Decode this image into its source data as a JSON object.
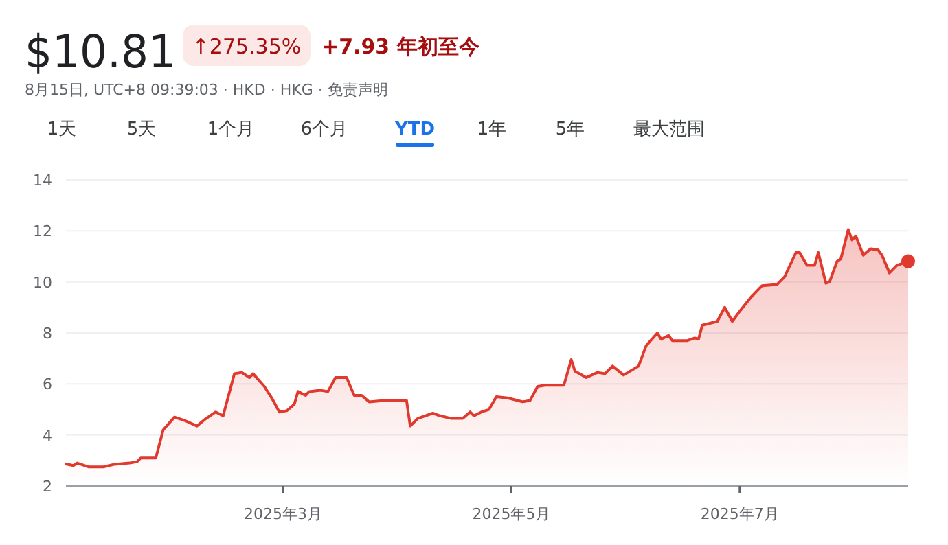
{
  "chart_data": {
    "type": "area",
    "title": "$10.81",
    "subtitle": "8月15日, UTC+8 09:39:03 · HKD · HKG · 免责声明",
    "annotations": [
      "↑275.35%",
      "+7.93 年初至今",
      "1天",
      "5天",
      "1个月",
      "6个月",
      "YTD",
      "1年",
      "5年",
      "最大范围"
    ],
    "xlim": [
      "2025-01-02",
      "2025-08-15"
    ],
    "xticks": [
      {
        "value": "2025-03-01",
        "label": "2025年3月"
      },
      {
        "value": "2025-05-01",
        "label": "2025年5月"
      },
      {
        "value": "2025-07-01",
        "label": "2025年7月"
      }
    ],
    "ylim": [
      2,
      14
    ],
    "yticks": [
      2,
      4,
      6,
      8,
      10,
      12,
      14
    ],
    "grid": "y",
    "series": [
      {
        "color": "#e0392e",
        "x": [
          "2025-01-02",
          "2025-01-04",
          "2025-01-05",
          "2025-01-08",
          "2025-01-12",
          "2025-01-15",
          "2025-01-19",
          "2025-01-21",
          "2025-01-22",
          "2025-01-26",
          "2025-01-28",
          "2025-01-31",
          "2025-02-03",
          "2025-02-06",
          "2025-02-08",
          "2025-02-11",
          "2025-02-13",
          "2025-02-16",
          "2025-02-18",
          "2025-02-20",
          "2025-02-21",
          "2025-02-24",
          "2025-02-26",
          "2025-02-28",
          "2025-03-02",
          "2025-03-04",
          "2025-03-05",
          "2025-03-07",
          "2025-03-08",
          "2025-03-11",
          "2025-03-13",
          "2025-03-15",
          "2025-03-18",
          "2025-03-20",
          "2025-03-22",
          "2025-03-24",
          "2025-03-28",
          "2025-04-01",
          "2025-04-03",
          "2025-04-04",
          "2025-04-06",
          "2025-04-10",
          "2025-04-12",
          "2025-04-15",
          "2025-04-18",
          "2025-04-20",
          "2025-04-21",
          "2025-04-23",
          "2025-04-25",
          "2025-04-27",
          "2025-04-30",
          "2025-05-04",
          "2025-05-06",
          "2025-05-08",
          "2025-05-10",
          "2025-05-15",
          "2025-05-17",
          "2025-05-18",
          "2025-05-21",
          "2025-05-24",
          "2025-05-26",
          "2025-05-28",
          "2025-05-31",
          "2025-06-04",
          "2025-06-06",
          "2025-06-09",
          "2025-06-10",
          "2025-06-12",
          "2025-06-13",
          "2025-06-17",
          "2025-06-19",
          "2025-06-20",
          "2025-06-21",
          "2025-06-25",
          "2025-06-27",
          "2025-06-29",
          "2025-07-01",
          "2025-07-04",
          "2025-07-07",
          "2025-07-11",
          "2025-07-13",
          "2025-07-16",
          "2025-07-17",
          "2025-07-19",
          "2025-07-21",
          "2025-07-22",
          "2025-07-24",
          "2025-07-25",
          "2025-07-27",
          "2025-07-28",
          "2025-07-30",
          "2025-07-31",
          "2025-08-01",
          "2025-08-03",
          "2025-08-05",
          "2025-08-07",
          "2025-08-08",
          "2025-08-10",
          "2025-08-12",
          "2025-08-15"
        ],
        "values": [
          2.86,
          2.8,
          2.9,
          2.75,
          2.75,
          2.85,
          2.9,
          2.95,
          3.1,
          3.1,
          4.2,
          4.7,
          4.55,
          4.35,
          4.6,
          4.9,
          4.75,
          6.4,
          6.45,
          6.25,
          6.4,
          5.9,
          5.45,
          4.9,
          4.95,
          5.2,
          5.7,
          5.55,
          5.7,
          5.75,
          5.7,
          6.25,
          6.25,
          5.55,
          5.55,
          5.3,
          5.35,
          5.35,
          5.35,
          4.35,
          4.65,
          4.85,
          4.75,
          4.65,
          4.65,
          4.9,
          4.75,
          4.9,
          5.0,
          5.5,
          5.45,
          5.3,
          5.35,
          5.9,
          5.95,
          5.95,
          6.95,
          6.5,
          6.25,
          6.45,
          6.4,
          6.7,
          6.35,
          6.7,
          7.5,
          8.0,
          7.75,
          7.9,
          7.7,
          7.7,
          7.8,
          7.75,
          8.3,
          8.45,
          9.0,
          8.45,
          8.85,
          9.4,
          9.85,
          9.9,
          10.2,
          11.15,
          11.15,
          10.65,
          10.65,
          11.15,
          9.95,
          10.0,
          10.8,
          10.9,
          12.05,
          11.65,
          11.8,
          11.05,
          11.3,
          11.25,
          11.05,
          10.35,
          10.65,
          10.81
        ]
      },
      {
        "type": "scatter",
        "color": "#e0392e",
        "marker": "circle",
        "x": [
          "2025-08-15"
        ],
        "values": [
          10.81
        ]
      }
    ]
  }
}
